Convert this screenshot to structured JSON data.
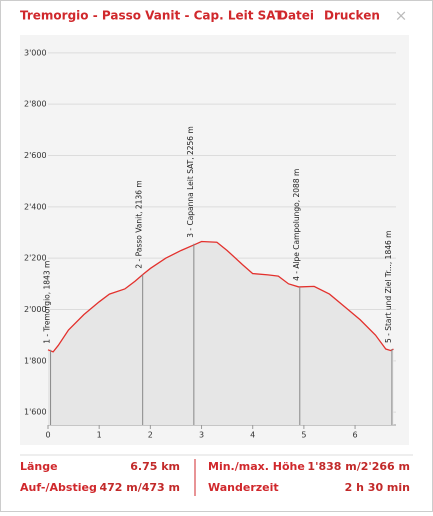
{
  "header": {
    "title": "Tremorgio - Passo Vanit - Cap. Leit SAT",
    "menu": [
      "Datei",
      "Drucken"
    ],
    "close": "×"
  },
  "chart_data": {
    "type": "line",
    "series": [
      {
        "color": "#e3312d",
        "x": [
          0,
          0.1,
          0.2,
          0.4,
          0.7,
          1.0,
          1.2,
          1.5,
          1.7,
          1.85,
          2.0,
          2.3,
          2.6,
          2.9,
          3.0,
          3.3,
          3.5,
          3.8,
          4.0,
          4.3,
          4.5,
          4.7,
          4.9,
          5.2,
          5.5,
          5.8,
          6.1,
          6.4,
          6.6,
          6.7,
          6.75
        ],
        "values": [
          1843,
          1835,
          1860,
          1920,
          1980,
          2030,
          2060,
          2080,
          2110,
          2136,
          2160,
          2200,
          2230,
          2256,
          2265,
          2262,
          2230,
          2175,
          2140,
          2135,
          2130,
          2100,
          2088,
          2090,
          2060,
          2010,
          1960,
          1900,
          1846,
          1840,
          1846
        ]
      }
    ],
    "waypoints": [
      {
        "x": 0.05,
        "elevation": 1843,
        "label": "1 - Tremorgio, 1843 m"
      },
      {
        "x": 1.85,
        "elevation": 2136,
        "label": "2 - Passo Vanit, 2136 m"
      },
      {
        "x": 2.85,
        "elevation": 2256,
        "label": "3 - Capanna Leit SAT, 2256 m"
      },
      {
        "x": 4.92,
        "elevation": 2088,
        "label": "4 - Alpe Campolungo, 2088 m"
      },
      {
        "x": 6.72,
        "elevation": 1846,
        "label": "5 - Start und Ziel Tr..., 1846 m"
      }
    ],
    "xlim": [
      0,
      6.8
    ],
    "xticks": [
      0,
      1,
      2,
      3,
      4,
      5,
      6
    ],
    "ylim": [
      1550,
      3050
    ],
    "yticks": [
      {
        "value": 1600,
        "label": "1'600"
      },
      {
        "value": 1800,
        "label": "1'800"
      },
      {
        "value": 2000,
        "label": "2'000"
      },
      {
        "value": 2200,
        "label": "2'200"
      },
      {
        "value": 2400,
        "label": "2'400"
      },
      {
        "value": 2600,
        "label": "2'600"
      },
      {
        "value": 2800,
        "label": "2'800"
      },
      {
        "value": 3000,
        "label": "3'000"
      }
    ],
    "grid": true
  },
  "footer": {
    "rows": [
      [
        {
          "label": "Länge",
          "value": "6.75 km"
        },
        {
          "label": "Min./max. Höhe",
          "value": "1'838 m/2'266 m"
        }
      ],
      [
        {
          "label": "Auf-/Abstieg",
          "value": "472 m/473 m"
        },
        {
          "label": "Wanderzeit",
          "value": "2 h 30 min"
        }
      ]
    ]
  }
}
